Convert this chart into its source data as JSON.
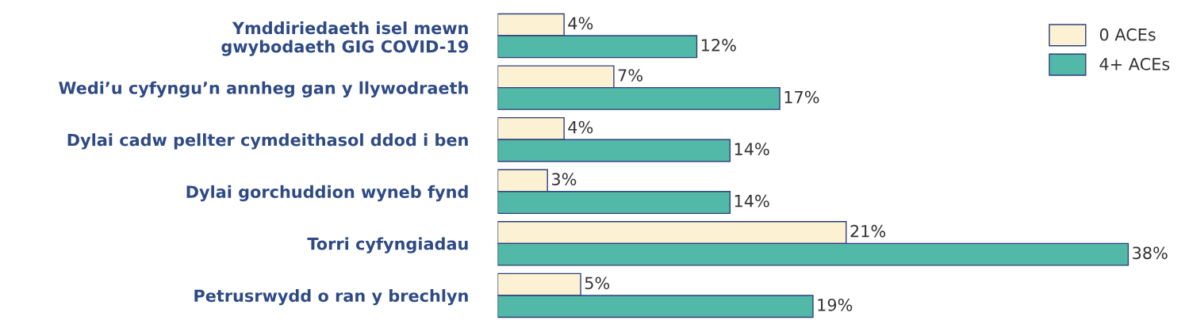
{
  "chart_data": {
    "type": "bar",
    "orientation": "horizontal",
    "categories": [
      "Ymddiriedaeth isel mewn\ngwybodaeth GIG COVID-19",
      "Wedi’u cyfyngu’n annheg gan y llywodraeth",
      "Dylai cadw pellter cymdeithasol ddod i ben",
      "Dylai gorchuddion wyneb fynd",
      "Torri cyfyngiadau",
      "Petrusrwydd o ran y brechlyn"
    ],
    "series": [
      {
        "name": "0 ACEs",
        "color": "#fdf1d3",
        "values": [
          4,
          7,
          4,
          3,
          21,
          5
        ],
        "value_labels": [
          "4%",
          "7%",
          "4%",
          "3%",
          "21%",
          "5%"
        ]
      },
      {
        "name": "4+ ACEs",
        "color": "#52b9a8",
        "values": [
          12,
          17,
          14,
          14,
          38,
          19
        ],
        "value_labels": [
          "12%",
          "17%",
          "14%",
          "14%",
          "38%",
          "19%"
        ]
      }
    ],
    "legend": "top right",
    "tick_labels": "y",
    "grid": false
  }
}
